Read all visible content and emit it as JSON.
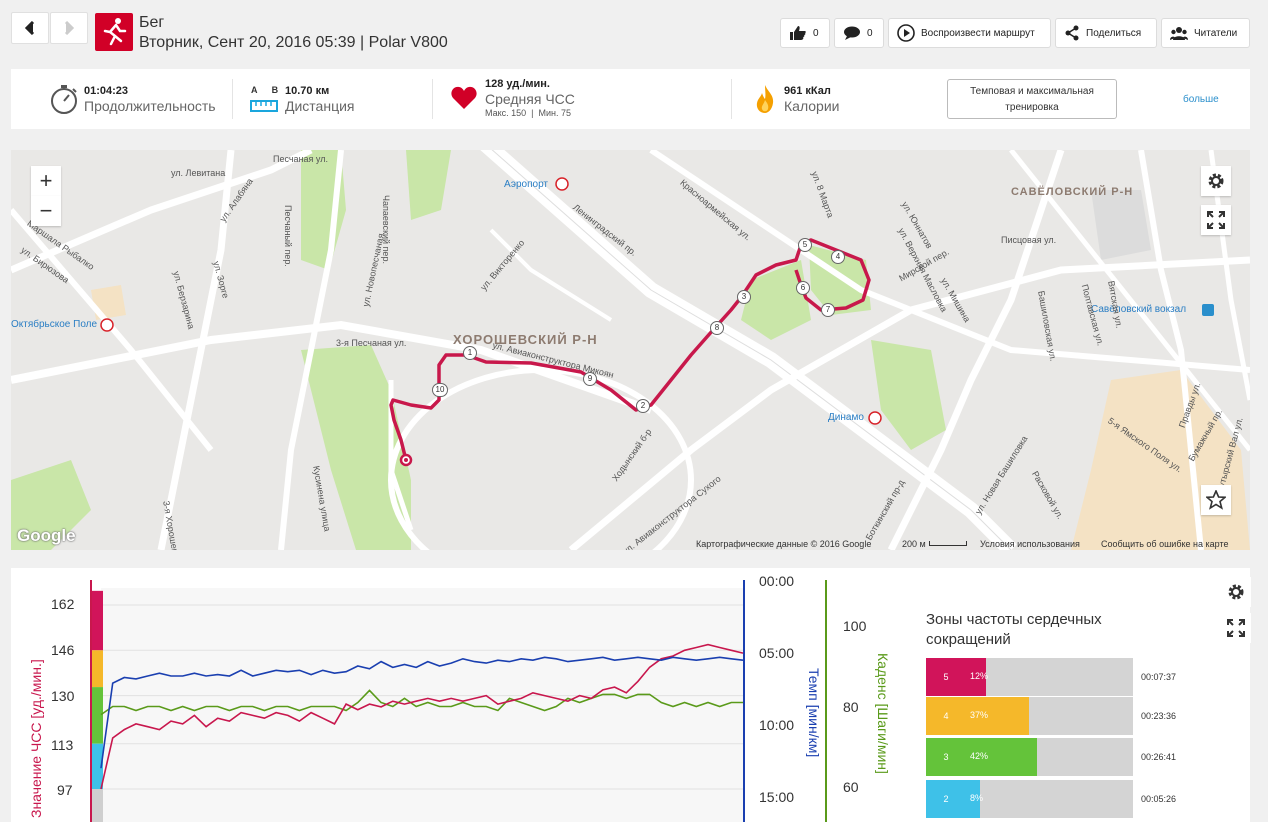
{
  "header": {
    "sport": "Бег",
    "subtitle": "Вторник, Сент 20, 2016 05:39 | Polar V800",
    "likes": "0",
    "comments": "0",
    "play_route": "Воспроизвести маршрут",
    "share": "Поделиться",
    "readers": "Читатели"
  },
  "summary": {
    "duration_value": "01:04:23",
    "duration_label": "Продолжительность",
    "distance_ab": "A B",
    "distance_value": "10.70 км",
    "distance_label": "Дистанция",
    "hr_value": "128 уд./мин.",
    "hr_label": "Средняя ЧСС",
    "hr_max_min": "Макс. 150  |  Мин. 75",
    "calories_value": "961 кКал",
    "calories_label": "Калории",
    "training_button": "Темповая и максимальная тренировка",
    "more": "больше",
    "accent": "#d10027"
  },
  "map": {
    "district_main": "ХОРОШЕВСКИЙ Р-Н",
    "district_savel": "САВЁЛОВСКИЙ Р-Н",
    "zoom_in": "+",
    "zoom_out": "−",
    "google": "Google",
    "attribution": "Картографические данные © 2016 Google",
    "scale": "200 м",
    "terms": "Условия использования",
    "report": "Сообщить об ошибке на карте",
    "streets": {
      "s1": "Аэропорт",
      "s2": "Ленинградский пр.",
      "s3": "ул. Левитана",
      "s4": "Песчаная ул.",
      "s5": "Чапаевский пер.",
      "s6": "ул. Викторенко",
      "s7": "ул. Новопесчаная",
      "s8": "Песчаный пер.",
      "s9": "ул. Алабяна",
      "s10": "ул. Зорге",
      "s11": "ул. Берзарина",
      "s12": "Октябрьское Поле",
      "s13": "Маршала Рыбалко",
      "s14": "ул. Бирюзова",
      "s15": "3-я Песчаная ул.",
      "s16": "ул. Авиаконструктора Микоян",
      "s17": "Ходынский б-р",
      "s18": "ул. Авиаконструктора Сухого",
      "s19": "Динамо",
      "s20": "ул. Новая Башиловка",
      "s21": "Савёловский вокзал",
      "s22": "Писцовая ул.",
      "s23": "Мирской пер.",
      "s24": "ул. Мишина",
      "s25": "ул. Юннатов",
      "s26": "ул. Верхняя Масловка",
      "s27": "Красноармейская ул.",
      "s28": "Кусиненa улица",
      "s29": "3-я Хорошевская",
      "s30": "Боткинский пр-д",
      "s31": "Расковой ул.",
      "s32": "5-я Ямского Поля ул.",
      "s33": "Бумажный пр.",
      "s34": "Бутырский Вал ул.",
      "s35": "Правды ул.",
      "s36": "ул. 8 Марта",
      "s37": "Башиловская ул.",
      "s38": "Полтавская ул.",
      "s39": "Вятская ул."
    },
    "markers": [
      "1",
      "2",
      "3",
      "4",
      "5",
      "6",
      "7",
      "8",
      "9",
      "10"
    ]
  },
  "chart_data": {
    "type": "line",
    "title": "",
    "hr_axis_label": "Значение ЧСС [уд./мин.]",
    "pace_axis_label": "Темп [мин/км]",
    "cadence_axis_label": "Каденс [Шаги/мин]",
    "hr_ticks": [
      "162",
      "146",
      "130",
      "113",
      "97"
    ],
    "pace_ticks": [
      "00:00",
      "05:00",
      "10:00",
      "15:00"
    ],
    "cadence_ticks": [
      "100",
      "80",
      "60"
    ],
    "series": [
      {
        "name": "ЧСС",
        "color": "#c8174d",
        "values": [
          97,
          115,
          118,
          120,
          119,
          118,
          121,
          120,
          123,
          119,
          122,
          121,
          124,
          123,
          122,
          124,
          123,
          121,
          124,
          122,
          120,
          127,
          125,
          127,
          126,
          128,
          127,
          128,
          129,
          128,
          129,
          128,
          129,
          130,
          127,
          128,
          129,
          131,
          130,
          129,
          128,
          130,
          129,
          132,
          133,
          131,
          135,
          140,
          143,
          144,
          146,
          147,
          148,
          147,
          146,
          145
        ]
      },
      {
        "name": "Темп",
        "color": "#1a3fb0",
        "pace_min_per_km": [
          13.0,
          7.1,
          6.7,
          6.8,
          6.6,
          6.4,
          6.6,
          6.6,
          6.4,
          6.6,
          6.5,
          6.6,
          6.2,
          6.6,
          6.4,
          6.2,
          6.3,
          6.2,
          6.5,
          6.2,
          6.4,
          6.3,
          5.9,
          6.1,
          5.6,
          6.0,
          5.8,
          6.0,
          5.6,
          5.9,
          5.7,
          5.4,
          5.6,
          5.7,
          5.5,
          5.6,
          5.4,
          5.5,
          5.3,
          5.4,
          5.6,
          5.5,
          5.4,
          5.3,
          5.5,
          5.4,
          5.3,
          5.4,
          5.5,
          5.3,
          5.4,
          5.5,
          5.4,
          5.3,
          5.4,
          5.5
        ]
      },
      {
        "name": "Каденс",
        "color": "#5a9a1a",
        "values": [
          78,
          80,
          80,
          79,
          80,
          80,
          79,
          80,
          79,
          80,
          80,
          79,
          80,
          80,
          79,
          80,
          80,
          79,
          80,
          80,
          80,
          79,
          81,
          84,
          81,
          80,
          82,
          80,
          81,
          80,
          80,
          81,
          80,
          80,
          79,
          82,
          81,
          80,
          79,
          80,
          82,
          81,
          82,
          83,
          83,
          82,
          83,
          83,
          81,
          80,
          81,
          80,
          81,
          80,
          81,
          81
        ]
      }
    ]
  },
  "zones": {
    "title": "Зоны частоты сердечных сокращений",
    "rows": [
      {
        "zone": "5",
        "pct": "12%",
        "fraction": 0.12,
        "time": "00:07:37",
        "color": "#d1145a"
      },
      {
        "zone": "4",
        "pct": "37%",
        "fraction": 0.37,
        "time": "00:23:36",
        "color": "#f5b82a"
      },
      {
        "zone": "3",
        "pct": "42%",
        "fraction": 0.42,
        "time": "00:26:41",
        "color": "#64c33a"
      },
      {
        "zone": "2",
        "pct": "8%",
        "fraction": 0.08,
        "time": "00:05:26",
        "color": "#3ec1e8"
      }
    ]
  }
}
